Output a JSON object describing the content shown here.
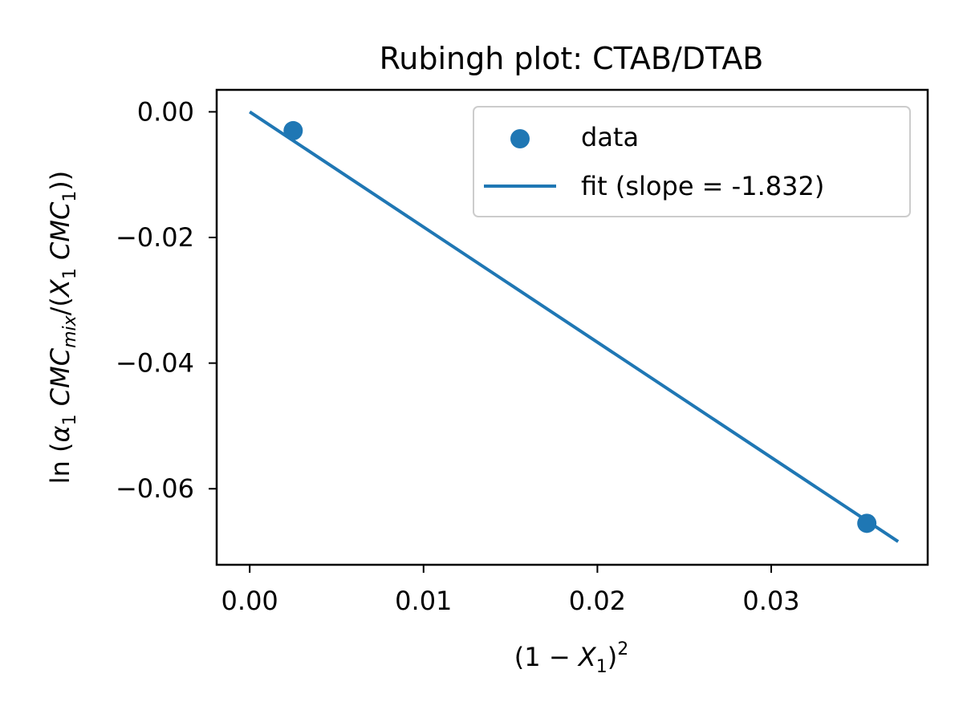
{
  "chart_data": {
    "type": "scatter",
    "title": "Rubingh plot: CTAB/DTAB",
    "xlabel": {
      "open": "(1 ",
      "minus": "−",
      "var": "X",
      "sub": "1",
      "close": ")",
      "sup": "2"
    },
    "ylabel": {
      "fn": "ln",
      "alpha": "α",
      "alpha_sub": "1",
      "cmc1": "CMC",
      "mix": "mix",
      "slash": "/(",
      "x": "X",
      "x_sub": "1",
      "cmc2": "CMC",
      "cmc2_sub": "1",
      "close": "))"
    },
    "xlim": [
      -0.0019,
      0.039
    ],
    "ylim": [
      -0.0721,
      0.0035
    ],
    "xticks": [
      0.0,
      0.01,
      0.02,
      0.03
    ],
    "xtick_labels": [
      "0.00",
      "0.01",
      "0.02",
      "0.03"
    ],
    "yticks": [
      0.0,
      -0.02,
      -0.04,
      -0.06
    ],
    "ytick_labels": [
      "0.00",
      "−0.02",
      "−0.04",
      "−0.06"
    ],
    "grid": false,
    "legend_position": "top-right",
    "color": "#1f77b4",
    "series": [
      {
        "name": "data",
        "kind": "scatter",
        "x": [
          0.0025,
          0.0355
        ],
        "y": [
          -0.003,
          -0.0655
        ]
      },
      {
        "name": "fit (slope = -1.832)",
        "kind": "line",
        "x": [
          0.0,
          0.0373
        ],
        "y": [
          0.0,
          -0.0684
        ]
      }
    ]
  }
}
